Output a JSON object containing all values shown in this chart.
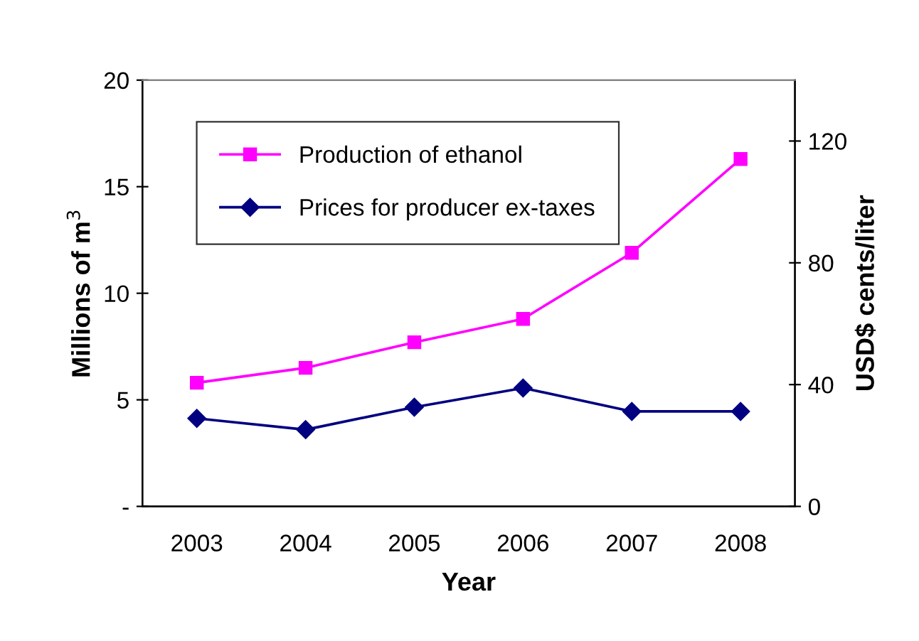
{
  "chart_data": {
    "type": "line",
    "categories": [
      "2003",
      "2004",
      "2005",
      "2006",
      "2007",
      "2008"
    ],
    "xlabel": "Year",
    "ylabel": "Millions of m$^{3}$",
    "y2label": "USD$ cents/liter",
    "series": [
      {
        "name": "Production of ethanol",
        "color": "#ff00ff",
        "marker": "square",
        "values": [
          5.8,
          6.5,
          7.7,
          8.8,
          11.9,
          16.3
        ]
      },
      {
        "name": "Prices for producer ex-taxes",
        "color": "#000080",
        "marker": "diamond",
        "axis": "y2",
        "values": [
          28.9,
          25.2,
          32.6,
          38.9,
          31.2,
          31.2
        ]
      }
    ],
    "ylim": [
      0,
      20
    ],
    "yticks": [
      {
        "value": 0,
        "label": "-"
      },
      5,
      10,
      15,
      20
    ],
    "y2lim": [
      0,
      140
    ],
    "y2ticks": [
      0,
      40,
      80,
      120
    ],
    "legend": "top left",
    "grid": false
  }
}
